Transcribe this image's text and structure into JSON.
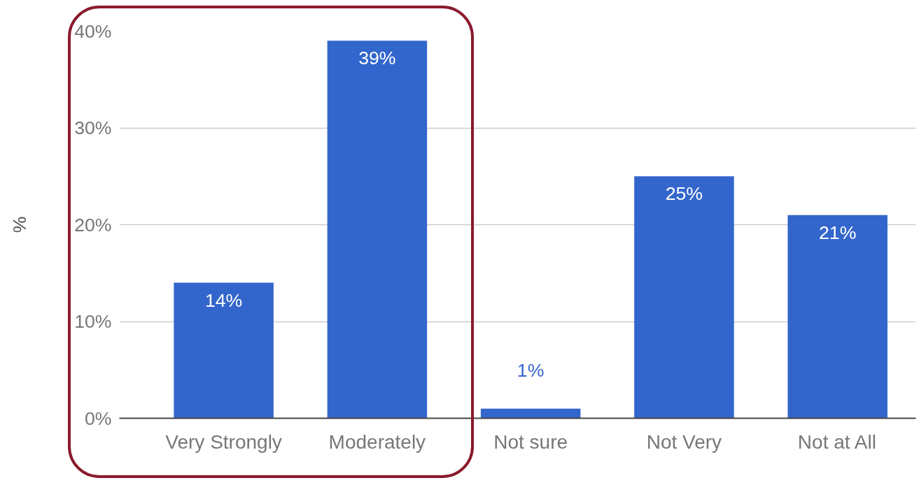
{
  "chart_data": {
    "type": "bar",
    "ylabel": "%",
    "categories": [
      "Very Strongly",
      "Moderately",
      "Not sure",
      "Not Very",
      "Not at All"
    ],
    "values": [
      14,
      39,
      1,
      25,
      21
    ],
    "value_labels": [
      "14%",
      "39%",
      "1%",
      "25%",
      "21%"
    ],
    "color": "#3366cc",
    "ylim": [
      0,
      40
    ],
    "yticks": [
      {
        "value": 0,
        "label": "0%"
      },
      {
        "value": 10,
        "label": "10%"
      },
      {
        "value": 20,
        "label": "20%"
      },
      {
        "value": 30,
        "label": "30%"
      },
      {
        "value": 40,
        "label": "40%"
      }
    ],
    "grid": "y"
  }
}
